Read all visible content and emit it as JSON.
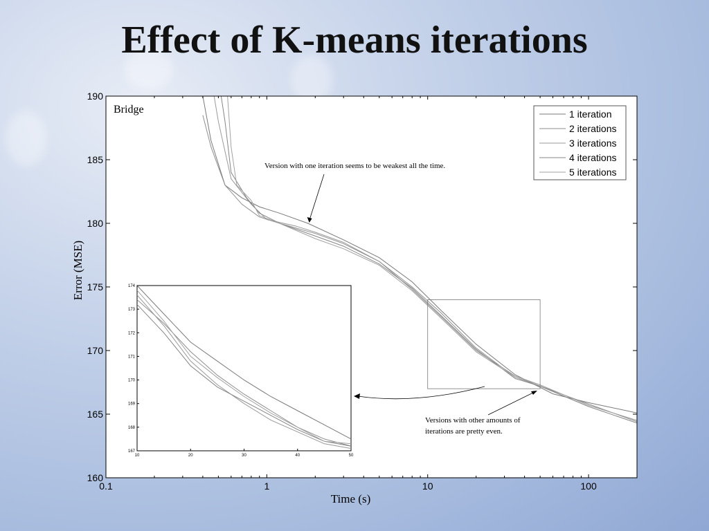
{
  "slide": {
    "title": "Effect of K-means iterations"
  },
  "colors": {
    "background": "#a9bddf",
    "plot_bg": "#ffffff",
    "line": "#888888",
    "axis": "#000000"
  },
  "chart_data": [
    {
      "type": "line",
      "title": "",
      "panel_label": "Bridge",
      "xlabel": "Time (s)",
      "ylabel": "Error (MSE)",
      "xscale": "log",
      "xlim": [
        0.1,
        200
      ],
      "ylim": [
        160,
        190
      ],
      "xticks": [
        0.1,
        1,
        10,
        100
      ],
      "xtick_labels": [
        "0.1",
        "1",
        "10",
        "100"
      ],
      "yticks": [
        160,
        165,
        170,
        175,
        180,
        185,
        190
      ],
      "ytick_labels": [
        "160",
        "165",
        "170",
        "175",
        "180",
        "185",
        "190"
      ],
      "legend_position": "top-right",
      "series": [
        {
          "name": "1 iteration",
          "x": [
            0.4,
            0.45,
            0.55,
            0.7,
            0.9,
            1.2,
            1.8,
            3,
            5,
            8,
            12,
            20,
            35,
            60,
            100,
            200
          ],
          "y": [
            190,
            186.5,
            183,
            182,
            181.3,
            180.8,
            180,
            178.7,
            177.3,
            175.4,
            173.2,
            170.5,
            168.1,
            166.6,
            165.9,
            165.1
          ]
        },
        {
          "name": "2 iterations",
          "x": [
            0.4,
            0.45,
            0.55,
            0.7,
            0.9,
            1.2,
            2,
            3,
            5,
            8,
            12,
            20,
            35,
            50,
            100,
            200
          ],
          "y": [
            188.5,
            186,
            183,
            181.5,
            180.5,
            180,
            179.2,
            178.4,
            177,
            175,
            173,
            170.2,
            167.9,
            167.2,
            165.8,
            164.4
          ]
        },
        {
          "name": "3 iterations",
          "x": [
            0.47,
            0.5,
            0.6,
            0.8,
            1,
            1.5,
            2,
            3,
            5,
            8,
            12,
            20,
            35,
            50,
            100,
            200
          ],
          "y": [
            190,
            188,
            183.5,
            181.5,
            180.3,
            179.8,
            179.3,
            178.5,
            177,
            174.8,
            172.7,
            170,
            168,
            167.3,
            165.7,
            164.5
          ]
        },
        {
          "name": "4 iterations",
          "x": [
            0.52,
            0.55,
            0.6,
            0.75,
            0.9,
            1.2,
            2,
            3,
            5,
            8,
            12,
            20,
            35,
            50,
            100,
            200
          ],
          "y": [
            190,
            188,
            184,
            182,
            180.8,
            180,
            179,
            178.2,
            176.8,
            174.9,
            172.8,
            170.1,
            167.8,
            167.2,
            165.6,
            164.3
          ]
        },
        {
          "name": "5 iterations",
          "x": [
            0.57,
            0.6,
            0.65,
            0.8,
            0.9,
            1.2,
            2,
            3,
            5,
            8,
            12,
            20,
            35,
            50,
            100,
            200
          ],
          "y": [
            190,
            186,
            183,
            181.8,
            180.6,
            180,
            178.8,
            178,
            176.7,
            174.7,
            172.6,
            169.9,
            167.9,
            167.3,
            165.7,
            164.5
          ]
        }
      ],
      "annotations": [
        {
          "text": "Version with one iteration seems to be weakest all  the time.",
          "x": 1.8,
          "y": 180
        },
        {
          "text_lines": [
            "Versions with other amounts of",
            "iterations are pretty even."
          ],
          "x": 48,
          "y": 166.9
        }
      ]
    },
    {
      "type": "line",
      "title": "",
      "role": "inset (zoom of x 10-50, y 167-174)",
      "xlim": [
        10,
        50
      ],
      "ylim": [
        167,
        174
      ],
      "xticks": [
        10,
        20,
        30,
        40,
        50
      ],
      "xtick_labels": [
        "10",
        "20",
        "30",
        "40",
        "50"
      ],
      "yticks": [
        167,
        168,
        169,
        170,
        171,
        172,
        173,
        174
      ],
      "ytick_labels": [
        "167",
        "168",
        "169",
        "170",
        "171",
        "172",
        "173",
        "174"
      ],
      "series": [
        {
          "name": "1 iteration",
          "x": [
            10,
            15,
            20,
            25,
            30,
            35,
            40,
            45,
            50
          ],
          "y": [
            174,
            172.8,
            171.6,
            170.8,
            170,
            169.3,
            168.7,
            168.1,
            167.5
          ]
        },
        {
          "name": "2 iterations",
          "x": [
            10,
            15,
            20,
            25,
            30,
            35,
            40,
            45,
            50
          ],
          "y": [
            173.4,
            172.4,
            171.2,
            170.2,
            169.4,
            168.7,
            168,
            167.5,
            167.2
          ]
        },
        {
          "name": "3 iterations",
          "x": [
            10,
            15,
            20,
            25,
            30,
            35,
            40,
            45,
            50
          ],
          "y": [
            173.6,
            172.3,
            170.8,
            169.8,
            169,
            168.3,
            167.8,
            167.3,
            167.1
          ]
        },
        {
          "name": "4 iterations",
          "x": [
            10,
            15,
            20,
            25,
            30,
            35,
            40,
            45,
            50
          ],
          "y": [
            173.2,
            172,
            170.6,
            169.7,
            169.1,
            168.5,
            167.9,
            167.4,
            167.2
          ]
        },
        {
          "name": "5 iterations",
          "x": [
            10,
            15,
            20,
            25,
            30,
            35,
            40,
            45,
            50
          ],
          "y": [
            173.8,
            172.5,
            171,
            170.1,
            169.3,
            168.6,
            168,
            167.4,
            167.3
          ]
        }
      ]
    }
  ]
}
